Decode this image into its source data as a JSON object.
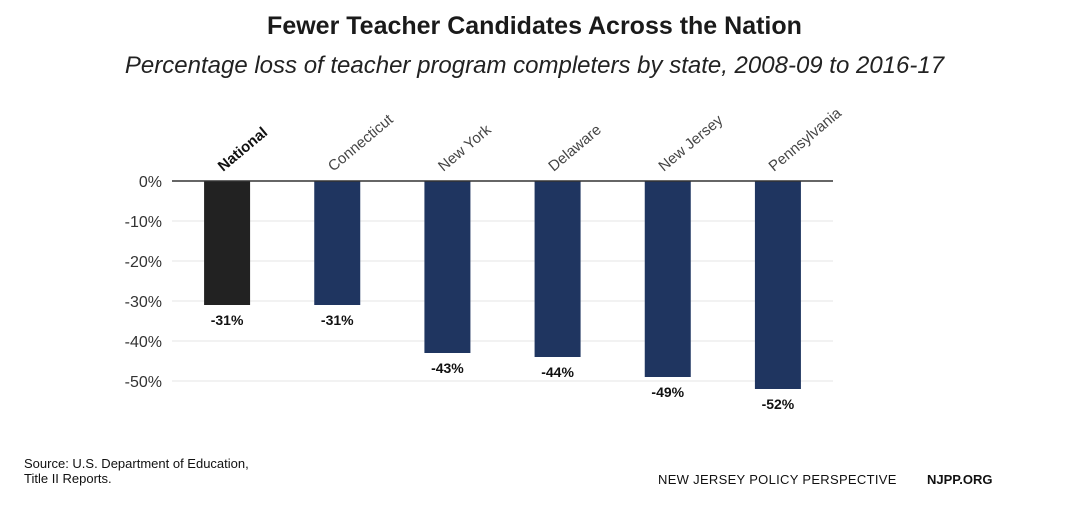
{
  "title": "Fewer Teacher Candidates Across the Nation",
  "subtitle": "Percentage loss of teacher program completers by state, 2008-09 to 2016-17",
  "chart_data": {
    "type": "bar",
    "title": "Fewer Teacher Candidates Across the Nation",
    "subtitle": "Percentage loss of teacher program completers by state, 2008-09 to 2016-17",
    "categories": [
      "National",
      "Connecticut",
      "New York",
      "Delaware",
      "New Jersey",
      "Pennsylvania"
    ],
    "values": [
      -31,
      -31,
      -43,
      -44,
      -49,
      -52
    ],
    "data_labels": [
      "-31%",
      "-31%",
      "-43%",
      "-44%",
      "-49%",
      "-52%"
    ],
    "highlight_category": "National",
    "ylim": [
      -55,
      0
    ],
    "yticks": [
      0,
      -10,
      -20,
      -30,
      -40,
      -50
    ],
    "ytick_labels": [
      "0%",
      "-10%",
      "-20%",
      "-30%",
      "-40%",
      "-50%"
    ],
    "xlabel": "",
    "ylabel": "",
    "grid": true,
    "colors": {
      "highlight": "#222222",
      "bar": "#1f3560",
      "grid": "#e6e6e6",
      "axis": "#333333"
    }
  },
  "footer": {
    "source_line1": "Source: U.S. Department of Education,",
    "source_line2": "Title II Reports.",
    "org": "NEW JERSEY POLICY PERSPECTIVE",
    "url": "NJPP.ORG"
  }
}
